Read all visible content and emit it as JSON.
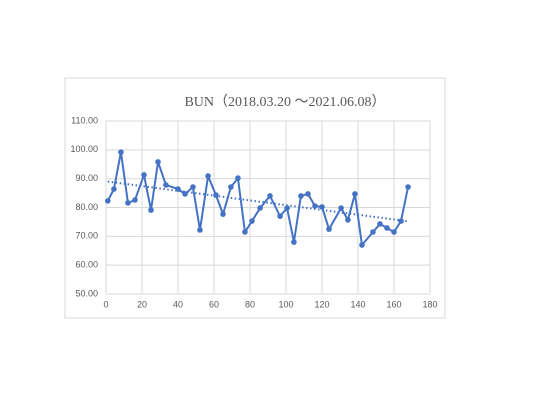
{
  "chart_data": {
    "type": "scatter-line",
    "title": "BUN（2018.03.20 ～2021.06.08）",
    "x": [
      1,
      4.4,
      8.3,
      12.2,
      16.1,
      21.1,
      25,
      28.9,
      33.3,
      40,
      43.9,
      48.3,
      52.2,
      56.7,
      61.1,
      65,
      69.4,
      73.3,
      77.2,
      81.1,
      85.6,
      91.1,
      96.7,
      100.6,
      104.4,
      108.3,
      112.2,
      116.1,
      120,
      123.9,
      130.6,
      134.4,
      138.3,
      142.2,
      148.3,
      152.2,
      156.1,
      160,
      163.9,
      167.8
    ],
    "series": [
      {
        "color": "#4472c4",
        "values": [
          82.3,
          86.4,
          99.2,
          81.6,
          82.6,
          91.3,
          79.1,
          95.8,
          87.8,
          86.4,
          84.7,
          87.1,
          72.2,
          90.9,
          84.3,
          77.7,
          87.1,
          90.2,
          71.5,
          75.3,
          79.8,
          84,
          77,
          79.8,
          68,
          84,
          84.7,
          80.5,
          80.2,
          72.5,
          79.8,
          75.7,
          84.7,
          67,
          71.5,
          74.3,
          72.9,
          71.5,
          75.3,
          87.1
        ]
      }
    ],
    "trendline": {
      "style": "dotted",
      "x": [
        1,
        167.8
      ],
      "values": [
        89,
        75.2
      ]
    },
    "xlim": [
      0,
      180
    ],
    "xticks": [
      0,
      20,
      40,
      60,
      80,
      100,
      120,
      140,
      160,
      180
    ],
    "ylim": [
      50,
      110
    ],
    "yticks": [
      {
        "value": 50,
        "label": "50.00"
      },
      {
        "value": 60,
        "label": "60.00"
      },
      {
        "value": 70,
        "label": "70.00"
      },
      {
        "value": 80,
        "label": "80.00"
      },
      {
        "value": 90,
        "label": "90.00"
      },
      {
        "value": 100,
        "label": "100.00"
      },
      {
        "value": 110,
        "label": "110.00"
      }
    ],
    "grid": true
  }
}
